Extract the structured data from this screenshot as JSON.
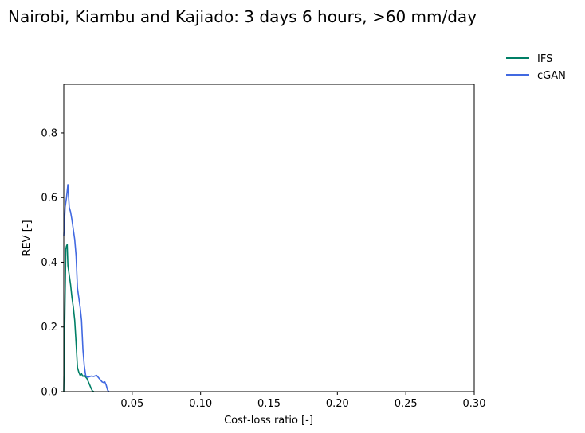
{
  "chart_data": {
    "type": "line",
    "title": "Nairobi, Kiambu and Kajiado: 3 days 6 hours, >60 mm/day",
    "xlabel": "Cost-loss ratio [-]",
    "ylabel": "REV [-]",
    "xlim": [
      0.0,
      0.3
    ],
    "ylim": [
      0.0,
      0.95
    ],
    "xticks": [
      0.05,
      0.1,
      0.15,
      0.2,
      0.25,
      0.3
    ],
    "xtick_labels": [
      "0.05",
      "0.10",
      "0.15",
      "0.20",
      "0.25",
      "0.30"
    ],
    "yticks": [
      0.0,
      0.2,
      0.4,
      0.6,
      0.8
    ],
    "ytick_labels": [
      "0.0",
      "0.2",
      "0.4",
      "0.6",
      "0.8"
    ],
    "grid": false,
    "legend": "outside-top-right",
    "series": [
      {
        "name": "IFS",
        "color": "#007f66",
        "x": [
          0.0,
          0.0005,
          0.001,
          0.0015,
          0.002,
          0.0025,
          0.003,
          0.0035,
          0.004,
          0.005,
          0.006,
          0.007,
          0.008,
          0.009,
          0.01,
          0.011,
          0.012,
          0.013,
          0.014,
          0.015,
          0.016,
          0.017,
          0.018,
          0.019,
          0.02,
          0.021,
          0.022
        ],
        "y": [
          0.0,
          0.15,
          0.3,
          0.44,
          0.45,
          0.455,
          0.39,
          0.375,
          0.36,
          0.33,
          0.29,
          0.26,
          0.22,
          0.15,
          0.075,
          0.06,
          0.05,
          0.055,
          0.047,
          0.05,
          0.045,
          0.04,
          0.03,
          0.02,
          0.01,
          0.002,
          0.0
        ]
      },
      {
        "name": "cGAN",
        "color": "#4169e1",
        "x": [
          0.0,
          0.001,
          0.002,
          0.003,
          0.004,
          0.005,
          0.006,
          0.007,
          0.008,
          0.009,
          0.01,
          0.011,
          0.012,
          0.013,
          0.014,
          0.015,
          0.016,
          0.017,
          0.018,
          0.02,
          0.022,
          0.024,
          0.026,
          0.028,
          0.029,
          0.03,
          0.031,
          0.032,
          0.033
        ],
        "y": [
          0.48,
          0.57,
          0.6,
          0.64,
          0.57,
          0.555,
          0.53,
          0.5,
          0.47,
          0.42,
          0.32,
          0.29,
          0.26,
          0.22,
          0.13,
          0.08,
          0.05,
          0.045,
          0.045,
          0.048,
          0.047,
          0.05,
          0.04,
          0.03,
          0.028,
          0.03,
          0.02,
          0.005,
          0.0
        ]
      }
    ]
  }
}
